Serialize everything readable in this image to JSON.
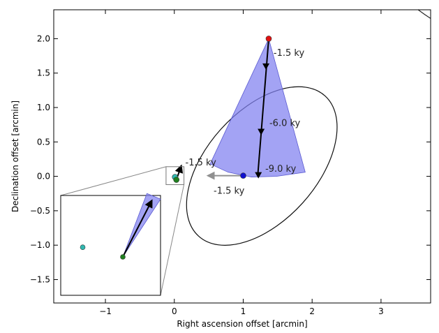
{
  "chart_data": {
    "type": "scatter",
    "title": "",
    "xlabel": "Right ascension offset [arcmin]",
    "ylabel": "Declination offset [arcmin]",
    "xlim": [
      -1.75,
      3.72
    ],
    "ylim": [
      -1.84,
      2.42
    ],
    "xticks": [
      {
        "v": -1,
        "label": "−1"
      },
      {
        "v": 0,
        "label": "0"
      },
      {
        "v": 1,
        "label": "1"
      },
      {
        "v": 2,
        "label": "2"
      },
      {
        "v": 3,
        "label": "3"
      }
    ],
    "yticks": [
      {
        "v": -1.5,
        "label": "−1.5"
      },
      {
        "v": -1.0,
        "label": "−1.0"
      },
      {
        "v": -0.5,
        "label": "−0.5"
      },
      {
        "v": 0.0,
        "label": "0.0"
      },
      {
        "v": 0.5,
        "label": "0.5"
      },
      {
        "v": 1.0,
        "label": "1.0"
      },
      {
        "v": 1.5,
        "label": "1.5"
      },
      {
        "v": 2.0,
        "label": "2.0"
      }
    ],
    "grid": false,
    "points": [
      {
        "name": "red-star",
        "x": 1.37,
        "y": 2.0,
        "color": "#e01010"
      },
      {
        "name": "blue-star",
        "x": 1.0,
        "y": 0.01,
        "color": "#1010d0"
      },
      {
        "name": "cyan-star",
        "x": 0.01,
        "y": -0.01,
        "color": "#30b8b0"
      },
      {
        "name": "green-star",
        "x": 0.03,
        "y": -0.05,
        "color": "#208020"
      }
    ],
    "cone": {
      "vertices": [
        [
          1.37,
          2.0
        ],
        [
          0.52,
          0.18
        ],
        [
          0.78,
          0.06
        ],
        [
          1.12,
          -0.01
        ],
        [
          1.48,
          0.0
        ],
        [
          1.9,
          0.06
        ]
      ],
      "color": "#8080f0"
    },
    "black_track": {
      "points": [
        [
          1.37,
          2.0
        ],
        [
          1.21,
          0.0
        ]
      ],
      "markers": [
        [
          1.33,
          1.6
        ],
        [
          1.26,
          0.65
        ],
        [
          1.22,
          0.02
        ]
      ],
      "color": "#000000"
    },
    "gray_arrow": {
      "from": [
        0.99,
        0.01
      ],
      "to": [
        0.49,
        0.01
      ],
      "color": "#909090"
    },
    "black_arrow": {
      "from": [
        0.03,
        -0.05
      ],
      "to": [
        0.1,
        0.15
      ],
      "color": "#000000"
    },
    "ellipse": {
      "cx": 1.27,
      "cy": 0.15,
      "rx": 1.37,
      "ry": 0.8,
      "angle_deg": -48,
      "color": "#111111"
    },
    "big_circle_edge": {
      "cx": 5.4,
      "cy": 4.9,
      "r": 3.1
    },
    "zoom_box": {
      "x0": -0.12,
      "x1": 0.14,
      "y0": -0.12,
      "y1": 0.14
    },
    "annotations": [
      {
        "text": "-1.5 ky",
        "x": 1.44,
        "y": 1.8,
        "anchor": "start"
      },
      {
        "text": "-6.0 ky",
        "x": 1.38,
        "y": 0.78,
        "anchor": "start"
      },
      {
        "text": "-9.0 ky",
        "x": 1.32,
        "y": 0.12,
        "anchor": "start"
      },
      {
        "text": "-1.5 ky",
        "x": 0.16,
        "y": 0.21,
        "anchor": "start"
      },
      {
        "text": "-1.5 ky",
        "x": 0.57,
        "y": -0.2,
        "anchor": "start"
      }
    ],
    "inset": {
      "points": [
        {
          "name": "inset-cyan-star",
          "x": -0.5,
          "y": 0.12,
          "color": "#30b8b0"
        },
        {
          "name": "inset-green-star",
          "x": 0.0,
          "y": 0.0,
          "color": "#208020"
        }
      ],
      "cone": [
        [
          0.0,
          0.0
        ],
        [
          0.3,
          0.79
        ],
        [
          0.47,
          0.72
        ]
      ],
      "arrow": {
        "from": [
          0.0,
          0.0
        ],
        "to": [
          0.36,
          0.7
        ]
      }
    }
  }
}
